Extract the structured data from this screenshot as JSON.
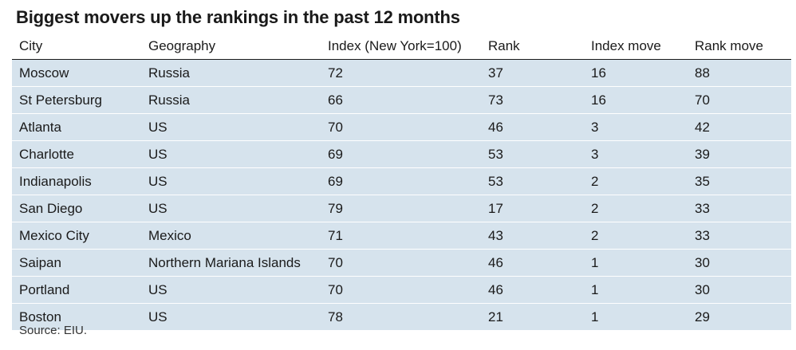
{
  "title": "Biggest movers up the rankings in the past 12 months",
  "columns": [
    "City",
    "Geography",
    "Index (New York=100)",
    "Rank",
    "Index move",
    "Rank move"
  ],
  "rows": [
    [
      "Moscow",
      "Russia",
      "72",
      "37",
      "16",
      "88"
    ],
    [
      "St Petersburg",
      "Russia",
      "66",
      "73",
      "16",
      "70"
    ],
    [
      "Atlanta",
      "US",
      "70",
      "46",
      "3",
      "42"
    ],
    [
      "Charlotte",
      "US",
      "69",
      "53",
      "3",
      "39"
    ],
    [
      "Indianapolis",
      "US",
      "69",
      "53",
      "2",
      "35"
    ],
    [
      "San Diego",
      "US",
      "79",
      "17",
      "2",
      "33"
    ],
    [
      "Mexico City",
      "Mexico",
      "71",
      "43",
      "2",
      "33"
    ],
    [
      "Saipan",
      "Northern Mariana Islands",
      "70",
      "46",
      "1",
      "30"
    ],
    [
      "Portland",
      "US",
      "70",
      "46",
      "1",
      "30"
    ],
    [
      "Boston",
      "US",
      "78",
      "21",
      "1",
      "29"
    ]
  ],
  "source": "Source: EIU.",
  "colors": {
    "row_background": "#d6e3ed",
    "text": "#1a1a1a"
  }
}
